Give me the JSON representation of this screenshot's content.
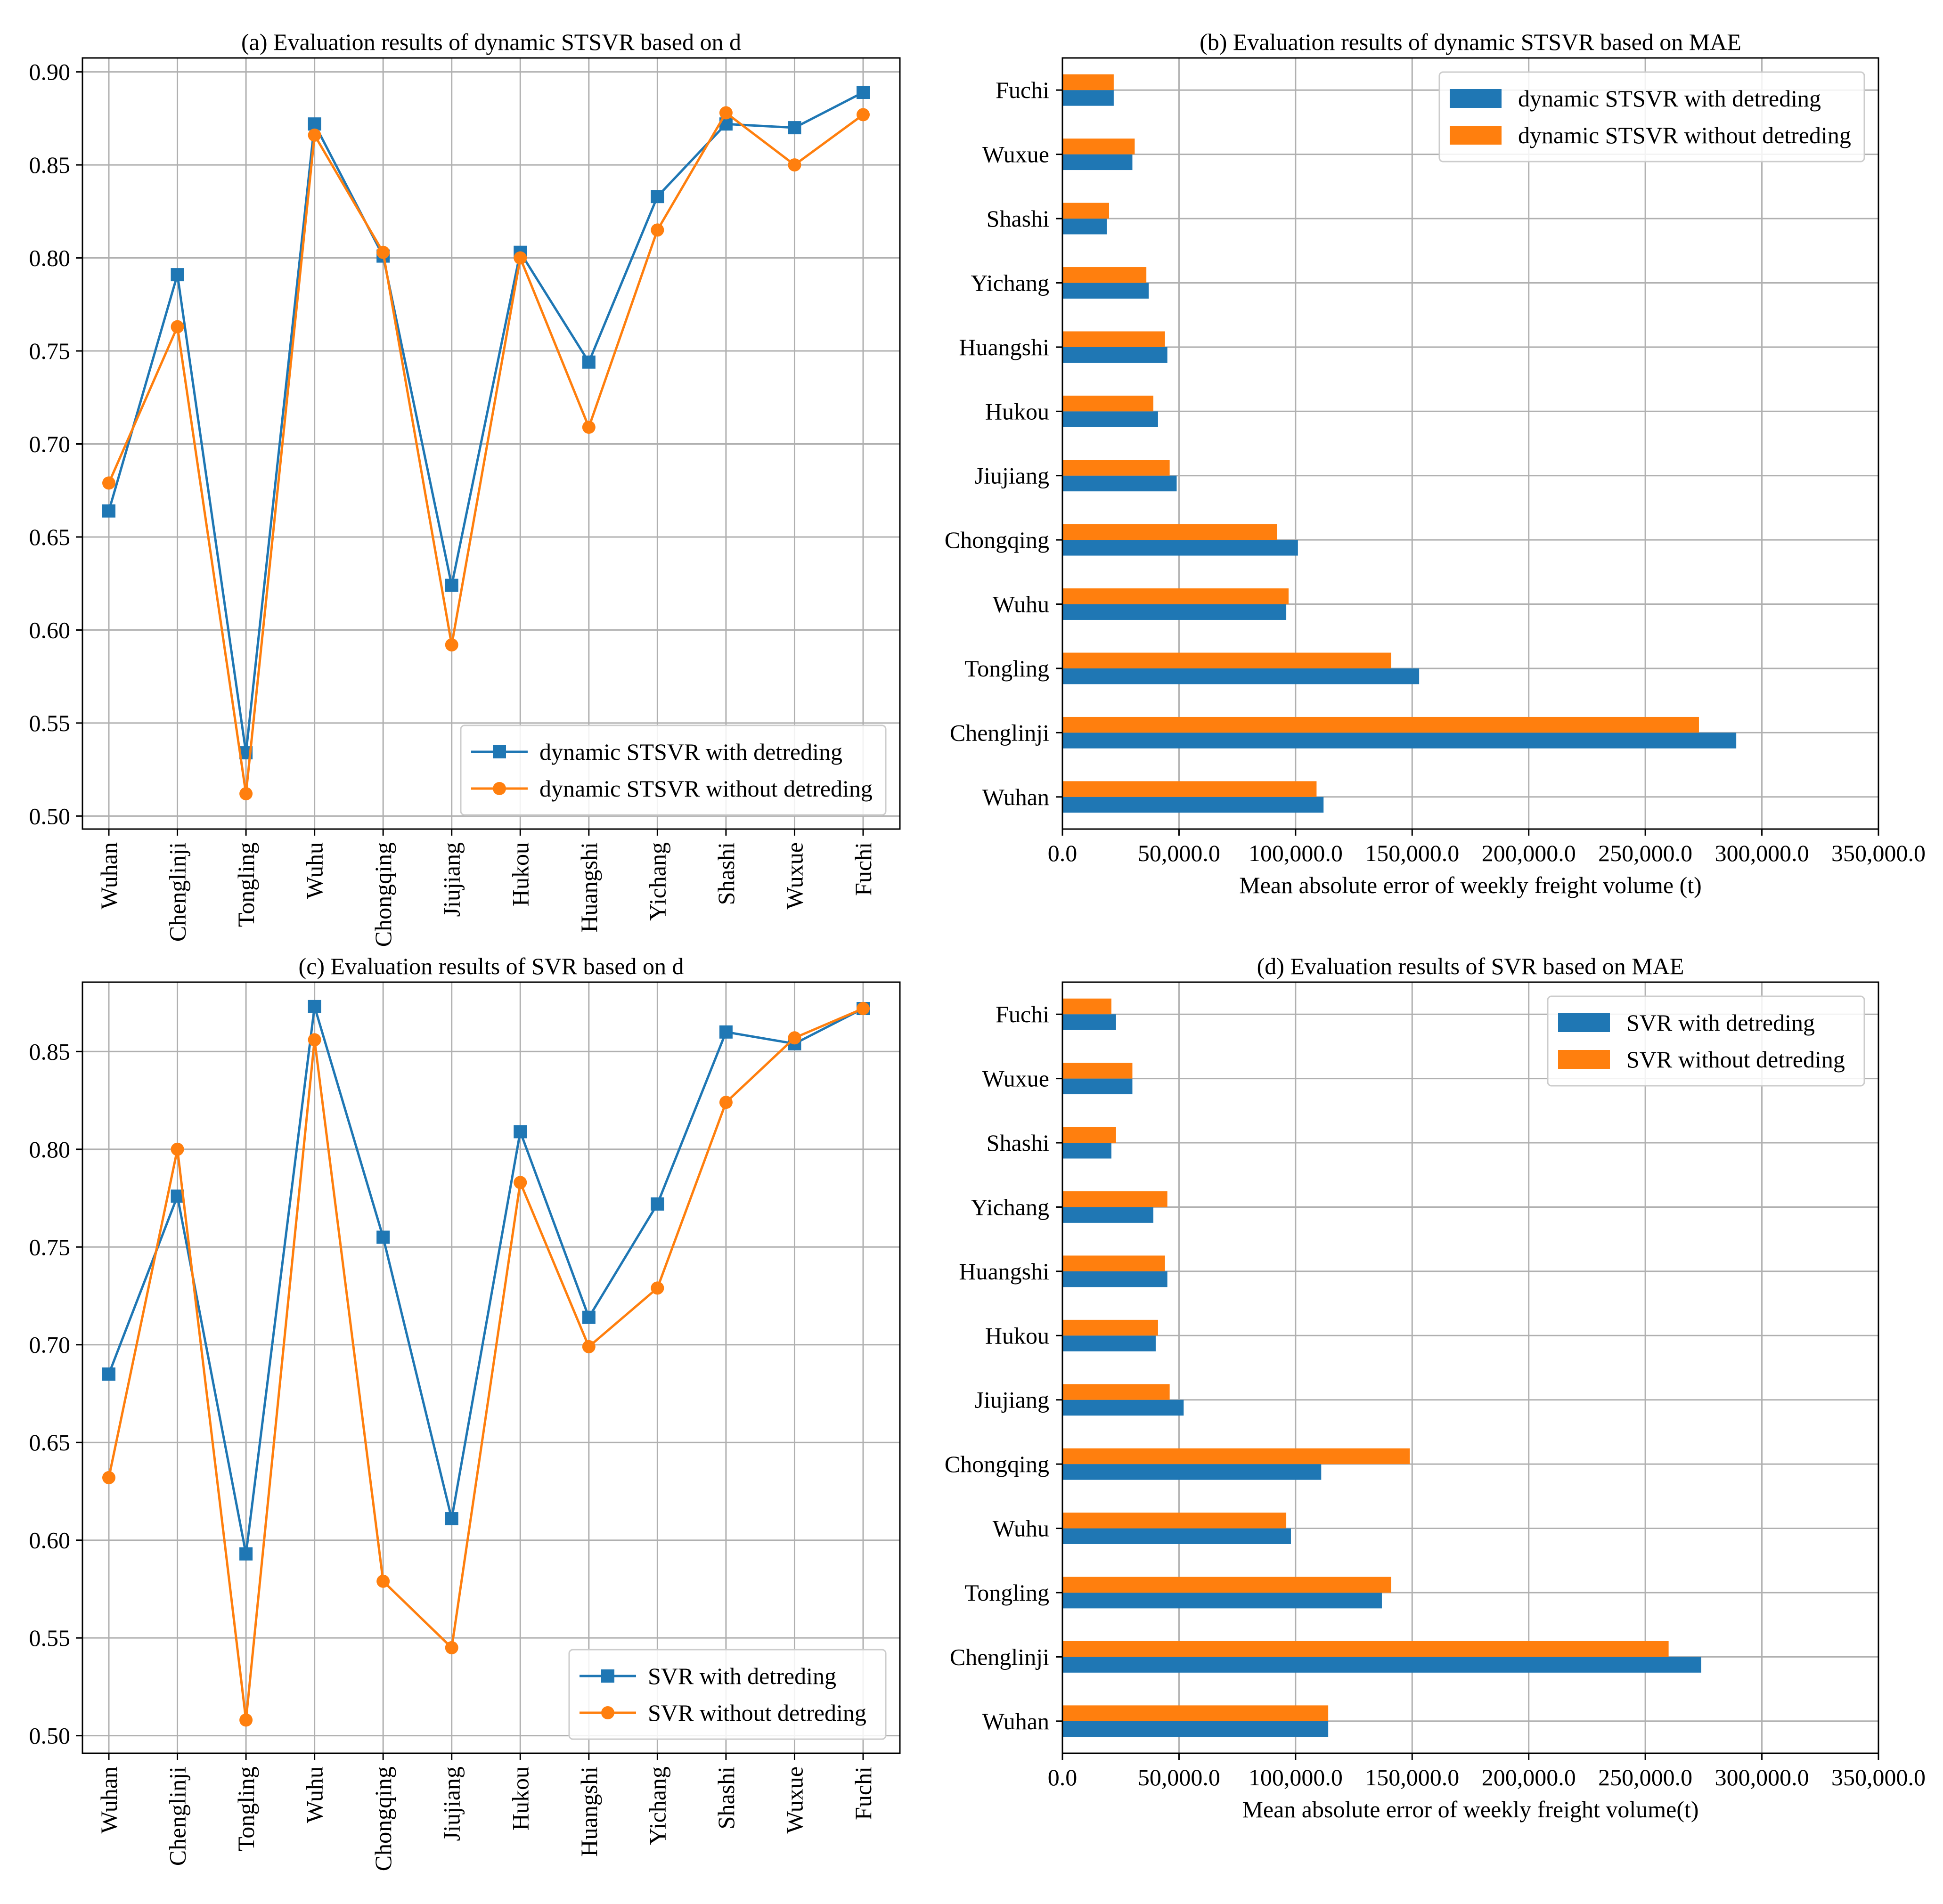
{
  "colors": {
    "blue": "#1f77b4",
    "orange": "#ff7f0e",
    "grid": "#b0b0b0"
  },
  "chart_data": [
    {
      "id": "a",
      "type": "line",
      "title": "(a) Evaluation results of dynamic STSVR based on d",
      "xlabel": "",
      "ylabel": "",
      "categories": [
        "Wuhan",
        "Chenglinji",
        "Tongling",
        "Wuhu",
        "Chongqing",
        "Jiujiang",
        "Hukou",
        "Huangshi",
        "Yichang",
        "Shashi",
        "Wuxue",
        "Fuchi"
      ],
      "ylim": [
        0.493,
        0.9075
      ],
      "yticks": [
        "0.50",
        "0.55",
        "0.60",
        "0.65",
        "0.70",
        "0.75",
        "0.80",
        "0.85",
        "0.90"
      ],
      "grid": true,
      "legend": "lower-right",
      "series": [
        {
          "name": "dynamic STSVR with detreding",
          "marker": "square",
          "color": "blue",
          "values": [
            0.664,
            0.791,
            0.534,
            0.872,
            0.801,
            0.624,
            0.803,
            0.744,
            0.833,
            0.872,
            0.87,
            0.889
          ]
        },
        {
          "name": "dynamic STSVR without detreding",
          "marker": "circle",
          "color": "orange",
          "values": [
            0.679,
            0.763,
            0.512,
            0.866,
            0.803,
            0.592,
            0.8,
            0.709,
            0.815,
            0.878,
            0.85,
            0.877
          ]
        }
      ]
    },
    {
      "id": "b",
      "type": "bar",
      "orientation": "horizontal",
      "title": "(b) Evaluation results of dynamic STSVR based on MAE",
      "xlabel": "Mean absolute error of weekly freight volume (t)",
      "ylabel": "",
      "categories": [
        "Wuhan",
        "Chenglinji",
        "Tongling",
        "Wuhu",
        "Chongqing",
        "Jiujiang",
        "Hukou",
        "Huangshi",
        "Yichang",
        "Shashi",
        "Wuxue",
        "Fuchi"
      ],
      "xlim": [
        0,
        350000
      ],
      "xticks": [
        "0.0",
        "50,000.0",
        "100,000.0",
        "150,000.0",
        "200,000.0",
        "250,000.0",
        "300,000.0",
        "350,000.0"
      ],
      "grid": true,
      "legend": "top-right",
      "series": [
        {
          "name": "dynamic STSVR with detreding",
          "color": "blue",
          "values": [
            112000,
            289000,
            153000,
            96000,
            101000,
            49000,
            41000,
            45000,
            37000,
            19000,
            30000,
            22000
          ]
        },
        {
          "name": "dynamic STSVR without detreding",
          "color": "orange",
          "values": [
            109000,
            273000,
            141000,
            97000,
            92000,
            46000,
            39000,
            44000,
            36000,
            20000,
            31000,
            22000
          ]
        }
      ]
    },
    {
      "id": "c",
      "type": "line",
      "title": "(c) Evaluation results of SVR based on d",
      "xlabel": "",
      "ylabel": "",
      "categories": [
        "Wuhan",
        "Chenglinji",
        "Tongling",
        "Wuhu",
        "Chongqing",
        "Jiujiang",
        "Hukou",
        "Huangshi",
        "Yichang",
        "Shashi",
        "Wuxue",
        "Fuchi"
      ],
      "ylim": [
        0.491,
        0.8855
      ],
      "yticks": [
        "0.50",
        "0.55",
        "0.60",
        "0.65",
        "0.70",
        "0.75",
        "0.80",
        "0.85"
      ],
      "grid": true,
      "legend": "lower-right",
      "series": [
        {
          "name": "SVR with detreding",
          "marker": "square",
          "color": "blue",
          "values": [
            0.685,
            0.776,
            0.593,
            0.873,
            0.755,
            0.611,
            0.809,
            0.714,
            0.772,
            0.86,
            0.854,
            0.872
          ]
        },
        {
          "name": "SVR without detreding",
          "marker": "circle",
          "color": "orange",
          "values": [
            0.632,
            0.8,
            0.508,
            0.856,
            0.579,
            0.545,
            0.783,
            0.699,
            0.729,
            0.824,
            0.857,
            0.872
          ]
        }
      ]
    },
    {
      "id": "d",
      "type": "bar",
      "orientation": "horizontal",
      "title": "(d) Evaluation results of SVR based on MAE",
      "xlabel": "Mean absolute error of weekly freight volume(t)",
      "ylabel": "",
      "categories": [
        "Wuhan",
        "Chenglinji",
        "Tongling",
        "Wuhu",
        "Chongqing",
        "Jiujiang",
        "Hukou",
        "Huangshi",
        "Yichang",
        "Shashi",
        "Wuxue",
        "Fuchi"
      ],
      "xlim": [
        0,
        350000
      ],
      "xticks": [
        "0.0",
        "50,000.0",
        "100,000.0",
        "150,000.0",
        "200,000.0",
        "250,000.0",
        "300,000.0",
        "350,000.0"
      ],
      "grid": true,
      "legend": "top-right",
      "series": [
        {
          "name": "SVR with detreding",
          "color": "blue",
          "values": [
            114000,
            274000,
            137000,
            98000,
            111000,
            52000,
            40000,
            45000,
            39000,
            21000,
            30000,
            23000
          ]
        },
        {
          "name": "SVR without detreding",
          "color": "orange",
          "values": [
            114000,
            260000,
            141000,
            96000,
            149000,
            46000,
            41000,
            44000,
            45000,
            23000,
            30000,
            21000
          ]
        }
      ]
    }
  ]
}
